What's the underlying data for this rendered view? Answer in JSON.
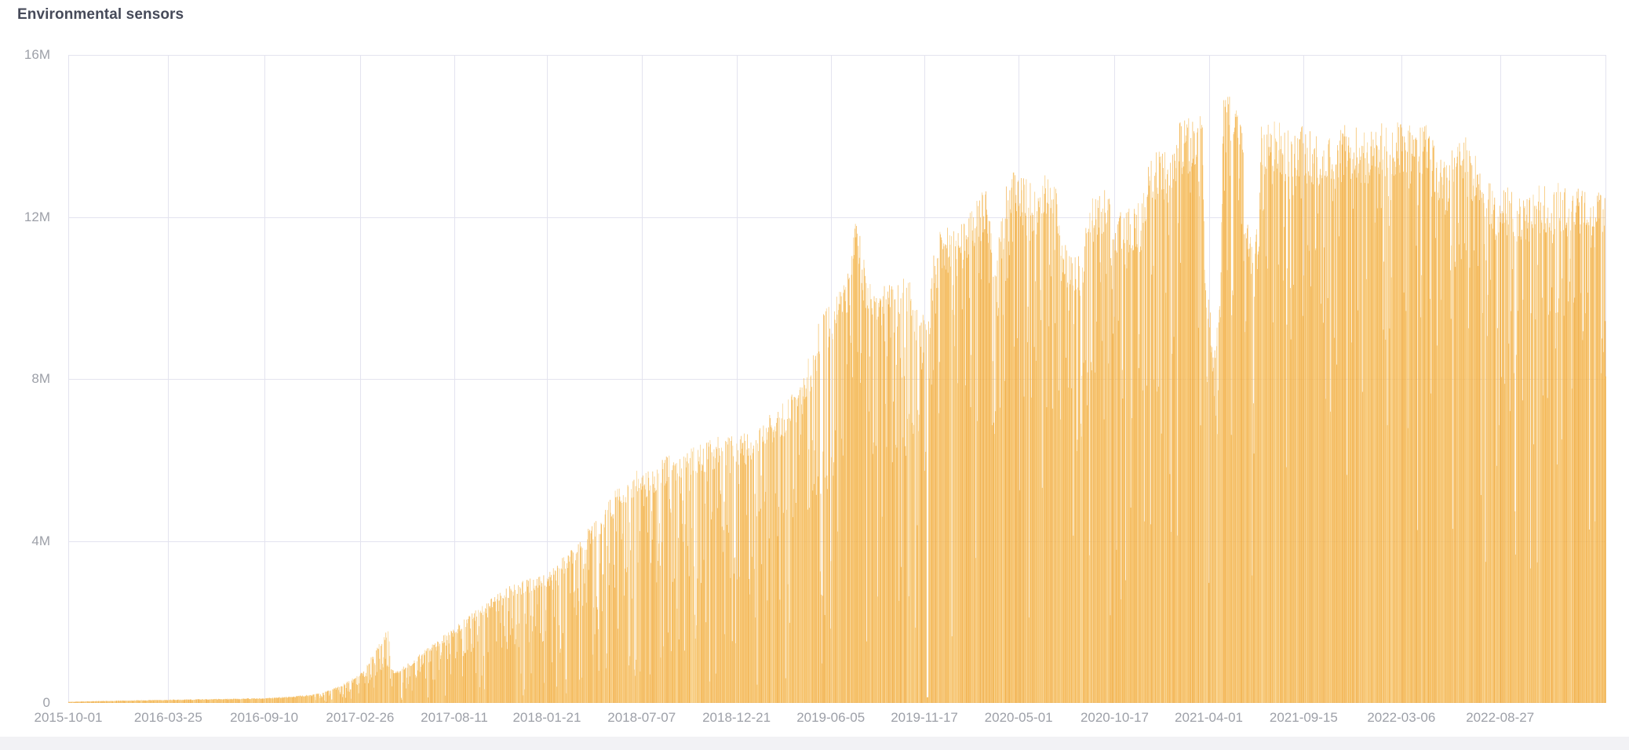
{
  "panel": {
    "title": "Environmental sensors"
  },
  "colors": {
    "title_text": "#464a59",
    "axis_text": "#9da0a8",
    "grid": "#e3e3ef",
    "plot_background": "#ffffff",
    "page_bottom_strip": "#f2f2f5",
    "bar_palette": [
      "#f0a93a",
      "#f4b64e",
      "#f6bf62",
      "#f8ca79",
      "#f3b246"
    ]
  },
  "chart_data": {
    "type": "bar",
    "title": "Environmental sensors",
    "series_name": "Environmental sensors",
    "xlabel": "",
    "ylabel": "",
    "unit": "count (millions)",
    "grid": true,
    "legend": false,
    "bar_granularity": "daily",
    "ylim_millions": [
      0,
      16
    ],
    "y_ticks": [
      {
        "label": "0",
        "value": 0
      },
      {
        "label": "4M",
        "value": 4
      },
      {
        "label": "8M",
        "value": 8
      },
      {
        "label": "12M",
        "value": 12
      },
      {
        "label": "16M",
        "value": 16
      }
    ],
    "x_start_date": "2015-10-01",
    "total_days": 2709,
    "x_ticks": [
      {
        "label": "2015-10-01",
        "day": 0
      },
      {
        "label": "2016-03-25",
        "day": 176
      },
      {
        "label": "2016-09-10",
        "day": 345
      },
      {
        "label": "2017-02-26",
        "day": 514
      },
      {
        "label": "2017-08-11",
        "day": 680
      },
      {
        "label": "2018-01-21",
        "day": 843
      },
      {
        "label": "2018-07-07",
        "day": 1010
      },
      {
        "label": "2018-12-21",
        "day": 1177
      },
      {
        "label": "2019-06-05",
        "day": 1343
      },
      {
        "label": "2019-11-17",
        "day": 1508
      },
      {
        "label": "2020-05-01",
        "day": 1674
      },
      {
        "label": "2020-10-17",
        "day": 1843
      },
      {
        "label": "2021-04-01",
        "day": 2009
      },
      {
        "label": "2021-09-15",
        "day": 2176
      },
      {
        "label": "2022-03-06",
        "day": 2348
      },
      {
        "label": "2022-08-27",
        "day": 2522
      }
    ],
    "envelope_points_day_valueM": [
      [
        0,
        0.03
      ],
      [
        87,
        0.06
      ],
      [
        171,
        0.08
      ],
      [
        253,
        0.1
      ],
      [
        343,
        0.12
      ],
      [
        391,
        0.16
      ],
      [
        433,
        0.22
      ],
      [
        460,
        0.32
      ],
      [
        488,
        0.5
      ],
      [
        515,
        0.75
      ],
      [
        540,
        1.3
      ],
      [
        561,
        1.82
      ],
      [
        564,
        1.88
      ],
      [
        567,
        0.85
      ],
      [
        578,
        0.78
      ],
      [
        605,
        1.05
      ],
      [
        640,
        1.45
      ],
      [
        686,
        1.95
      ],
      [
        723,
        2.35
      ],
      [
        764,
        2.85
      ],
      [
        806,
        3.05
      ],
      [
        847,
        3.25
      ],
      [
        882,
        3.75
      ],
      [
        930,
        4.6
      ],
      [
        971,
        5.4
      ],
      [
        999,
        5.8
      ],
      [
        1020,
        5.75
      ],
      [
        1054,
        6.1
      ],
      [
        1096,
        6.3
      ],
      [
        1137,
        6.55
      ],
      [
        1169,
        6.7
      ],
      [
        1193,
        6.65
      ],
      [
        1216,
        6.85
      ],
      [
        1262,
        7.5
      ],
      [
        1289,
        7.9
      ],
      [
        1321,
        9.4
      ],
      [
        1345,
        10.1
      ],
      [
        1372,
        10.7
      ],
      [
        1386,
        11.9
      ],
      [
        1390,
        12.0
      ],
      [
        1400,
        11.0
      ],
      [
        1418,
        10.2
      ],
      [
        1435,
        10.3
      ],
      [
        1455,
        10.5
      ],
      [
        1476,
        10.7
      ],
      [
        1494,
        9.9
      ],
      [
        1513,
        9.4
      ],
      [
        1524,
        11.1
      ],
      [
        1538,
        11.8
      ],
      [
        1566,
        11.7
      ],
      [
        1593,
        12.3
      ],
      [
        1614,
        12.8
      ],
      [
        1635,
        11.4
      ],
      [
        1656,
        13.1
      ],
      [
        1683,
        13.1
      ],
      [
        1704,
        12.7
      ],
      [
        1718,
        13.2
      ],
      [
        1738,
        12.8
      ],
      [
        1759,
        11.2
      ],
      [
        1784,
        11.0
      ],
      [
        1801,
        12.6
      ],
      [
        1821,
        12.8
      ],
      [
        1842,
        12.3
      ],
      [
        1870,
        12.2
      ],
      [
        1890,
        12.4
      ],
      [
        1904,
        13.5
      ],
      [
        1925,
        13.7
      ],
      [
        1946,
        14.1
      ],
      [
        1966,
        14.5
      ],
      [
        1997,
        14.5
      ],
      [
        2001,
        11.1
      ],
      [
        2012,
        9.6
      ],
      [
        2020,
        8.9
      ],
      [
        2029,
        10.0
      ],
      [
        2033,
        14.8
      ],
      [
        2043,
        15.3
      ],
      [
        2056,
        15.0
      ],
      [
        2067,
        14.9
      ],
      [
        2072,
        11.9
      ],
      [
        2096,
        11.7
      ],
      [
        2101,
        14.3
      ],
      [
        2119,
        14.5
      ],
      [
        2146,
        14.2
      ],
      [
        2174,
        14.3
      ],
      [
        2201,
        14.0
      ],
      [
        2229,
        14.2
      ],
      [
        2257,
        14.3
      ],
      [
        2284,
        14.1
      ],
      [
        2312,
        14.4
      ],
      [
        2340,
        14.4
      ],
      [
        2367,
        14.5
      ],
      [
        2388,
        14.4
      ],
      [
        2409,
        13.8
      ],
      [
        2430,
        13.3
      ],
      [
        2434,
        13.3
      ],
      [
        2435,
        9.8
      ],
      [
        2437,
        13.7
      ],
      [
        2464,
        14.0
      ],
      [
        2485,
        13.4
      ],
      [
        2506,
        13.0
      ],
      [
        2516,
        12.4
      ],
      [
        2517,
        9.4
      ],
      [
        2518,
        12.4
      ],
      [
        2533,
        12.8
      ],
      [
        2555,
        12.6
      ],
      [
        2560,
        12.6
      ],
      [
        2561,
        7.9
      ],
      [
        2563,
        12.5
      ],
      [
        2581,
        12.7
      ],
      [
        2595,
        12.9
      ],
      [
        2616,
        12.8
      ],
      [
        2643,
        13.0
      ],
      [
        2664,
        12.7
      ],
      [
        2685,
        12.8
      ],
      [
        2709,
        12.5
      ]
    ],
    "outage_day_ranges": [
      [
        1512,
        1514
      ]
    ],
    "annotations": [
      "sawtooth spike to ~1.9M in spring 2017 followed by sharp drop",
      "spike touching ~12M just after 2019-06-05 tick",
      "multi-day notch down to ~8.9M shortly after 2021-04-01",
      "global maximum ~15.3M in May 2021",
      "deep single-day slash to ~7.9M near end of series"
    ]
  }
}
